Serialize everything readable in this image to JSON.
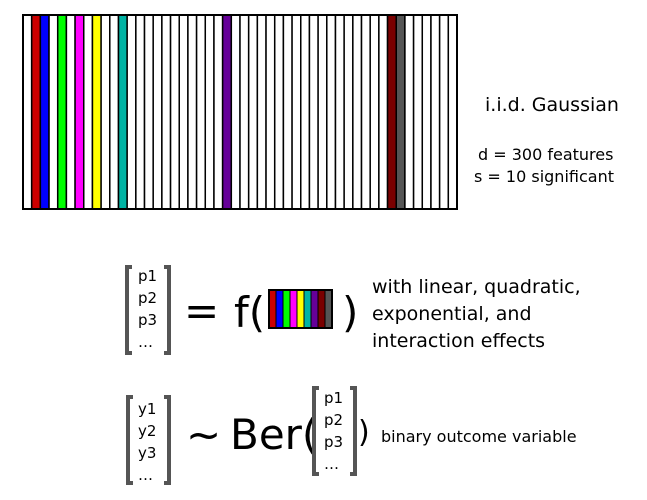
{
  "matrix": {
    "total_columns": 50,
    "fill_default": "#ffffff",
    "stroke": "#000000",
    "highlighted_columns": [
      {
        "index": 1,
        "color": "#cc0000"
      },
      {
        "index": 2,
        "color": "#0000ff"
      },
      {
        "index": 4,
        "color": "#00ff00"
      },
      {
        "index": 6,
        "color": "#ff00ff"
      },
      {
        "index": 8,
        "color": "#ffff00"
      },
      {
        "index": 11,
        "color": "#00b3a4"
      },
      {
        "index": 23,
        "color": "#660099"
      },
      {
        "index": 42,
        "color": "#7a0000"
      },
      {
        "index": 43,
        "color": "#555555"
      }
    ]
  },
  "caption": {
    "title": "i.i.d. Gaussian",
    "line1": "d = 300 features",
    "line2": "s = 10 significant"
  },
  "equation1": {
    "vector": [
      "p1",
      "p2",
      "p3",
      "…"
    ],
    "equals": "=",
    "func_open": "f(",
    "func_close": ")",
    "mini_colors": [
      "#cc0000",
      "#0000ff",
      "#00ff00",
      "#ff00ff",
      "#ffff00",
      "#00b3a4",
      "#660099",
      "#7a0000",
      "#555555"
    ],
    "note_lines": [
      "with linear, quadratic,",
      "exponential, and",
      "interaction effects"
    ]
  },
  "equation2": {
    "vector_y": [
      "y1",
      "y2",
      "y3",
      "…"
    ],
    "tilde": "~",
    "func_open": "Ber(",
    "vector_p": [
      "p1",
      "p2",
      "p3",
      "…"
    ],
    "func_close": ")",
    "note": "binary outcome variable"
  },
  "colors": {
    "bracket": "#555555"
  }
}
